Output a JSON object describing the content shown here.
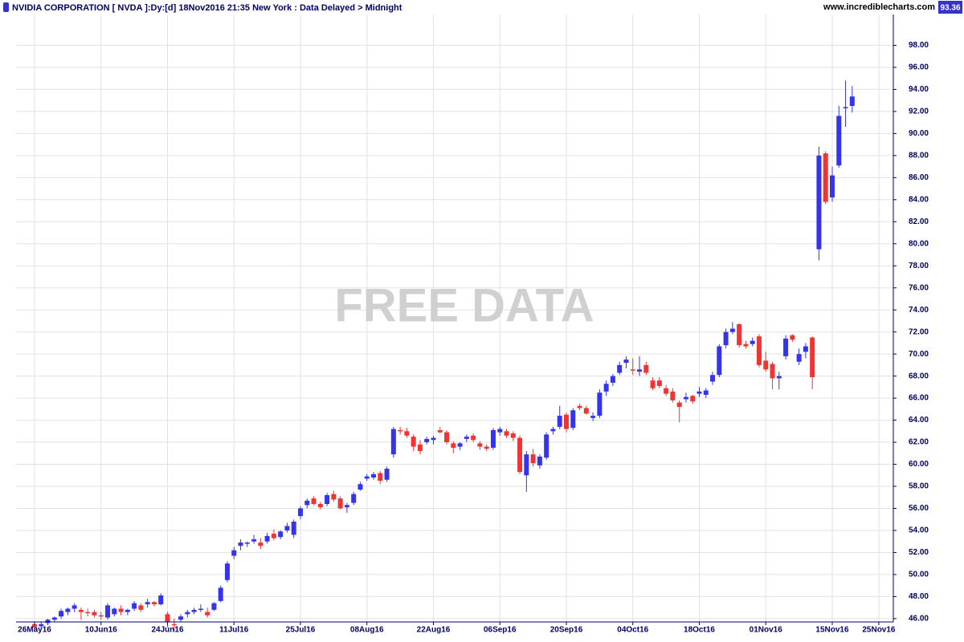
{
  "header": {
    "title": "NVIDIA CORPORATION [ NVDA ]:Dy:[d]  18Nov2016 21:35 New York : Data Delayed > Midnight",
    "website": "www.incrediblecharts.com"
  },
  "chart_data": {
    "type": "candlestick",
    "watermark": "FREE DATA",
    "last_price": 93.36,
    "up_color": "#3434f0",
    "down_color": "#f03434",
    "grid": true,
    "ylim": [
      45.7,
      100.8
    ],
    "yticks": [
      {
        "value": 46,
        "label": "46.00"
      },
      {
        "value": 48,
        "label": "48.00"
      },
      {
        "value": 50,
        "label": "50.00"
      },
      {
        "value": 52,
        "label": "52.00"
      },
      {
        "value": 54,
        "label": "54.00"
      },
      {
        "value": 56,
        "label": "56.00"
      },
      {
        "value": 58,
        "label": "58.00"
      },
      {
        "value": 60,
        "label": "60.00"
      },
      {
        "value": 62,
        "label": "62.00"
      },
      {
        "value": 64,
        "label": "64.00"
      },
      {
        "value": 66,
        "label": "66.00"
      },
      {
        "value": 68,
        "label": "68.00"
      },
      {
        "value": 70,
        "label": "70.00"
      },
      {
        "value": 72,
        "label": "72.00"
      },
      {
        "value": 74,
        "label": "74.00"
      },
      {
        "value": 76,
        "label": "76.00"
      },
      {
        "value": 78,
        "label": "78.00"
      },
      {
        "value": 80,
        "label": "80.00"
      },
      {
        "value": 82,
        "label": "82.00"
      },
      {
        "value": 84,
        "label": "84.00"
      },
      {
        "value": 86,
        "label": "86.00"
      },
      {
        "value": 88,
        "label": "88.00"
      },
      {
        "value": 90,
        "label": "90.00"
      },
      {
        "value": 92,
        "label": "92.00"
      },
      {
        "value": 94,
        "label": "94.00"
      },
      {
        "value": 96,
        "label": "96.00"
      },
      {
        "value": 98,
        "label": "98.00"
      }
    ],
    "categories": [
      "26May16",
      null,
      null,
      null,
      null,
      null,
      null,
      null,
      null,
      null,
      "10Jun16",
      null,
      null,
      null,
      null,
      null,
      null,
      null,
      null,
      null,
      "24Jun16",
      null,
      null,
      null,
      null,
      null,
      null,
      null,
      null,
      null,
      "11Jul16",
      null,
      null,
      null,
      null,
      null,
      null,
      null,
      null,
      null,
      "25Jul16",
      null,
      null,
      null,
      null,
      null,
      null,
      null,
      null,
      null,
      "08Aug16",
      null,
      null,
      null,
      null,
      null,
      null,
      null,
      null,
      null,
      "22Aug16",
      null,
      null,
      null,
      null,
      null,
      null,
      null,
      null,
      null,
      "06Sep16",
      null,
      null,
      null,
      null,
      null,
      null,
      null,
      null,
      null,
      "20Sep16",
      null,
      null,
      null,
      null,
      null,
      null,
      null,
      null,
      null,
      "04Oct16",
      null,
      null,
      null,
      null,
      null,
      null,
      null,
      null,
      null,
      "18Oct16",
      null,
      null,
      null,
      null,
      null,
      null,
      null,
      null,
      null,
      "01Nov16",
      null,
      null,
      null,
      null,
      null,
      null,
      null,
      null,
      null,
      "15Nov16",
      null,
      null,
      null,
      null,
      null,
      null,
      "25Nov16"
    ],
    "open": [
      45.5,
      45.3,
      45.6,
      45.9,
      46.2,
      46.6,
      46.9,
      46.8,
      46.6,
      46.6,
      46.3,
      46.1,
      46.4,
      46.9,
      46.6,
      46.9,
      47.2,
      47.3,
      47.5,
      47.3,
      46.4,
      45.5,
      45.9,
      46.4,
      46.6,
      46.8,
      46.6,
      46.8,
      47.6,
      49.5,
      51.7,
      52.6,
      52.8,
      53.0,
      52.9,
      53.0,
      53.7,
      53.4,
      54.0,
      53.6,
      55.3,
      56.3,
      56.9,
      56.4,
      56.4,
      57.3,
      56.9,
      56.1,
      56.5,
      57.7,
      58.7,
      58.8,
      59.2,
      58.6,
      60.9,
      63.1,
      63.0,
      62.5,
      61.8,
      62.0,
      62.2,
      63.1,
      62.9,
      61.9,
      61.6,
      62.3,
      62.6,
      61.9,
      61.6,
      61.5,
      62.9,
      63.0,
      62.8,
      62.4,
      59.0,
      60.9,
      59.9,
      60.6,
      63.0,
      63.4,
      64.5,
      63.3,
      65.3,
      65.1,
      64.2,
      64.4,
      66.6,
      67.4,
      68.3,
      69.2,
      68.6,
      68.4,
      69.0,
      67.6,
      67.6,
      66.9,
      66.6,
      65.6,
      65.9,
      66.2,
      66.4,
      66.3,
      67.5,
      68.1,
      70.8,
      72.0,
      72.7,
      70.9,
      70.9,
      71.6,
      69.4,
      69.1,
      67.8,
      69.8,
      71.7,
      69.3,
      70.2,
      71.5,
      79.5,
      88.2,
      84.2,
      87.1,
      92.3,
      92.5,
      null,
      null,
      null,
      null
    ],
    "high": [
      45.7,
      45.7,
      46.0,
      46.2,
      46.9,
      47.0,
      47.4,
      47.0,
      46.9,
      46.8,
      46.6,
      47.4,
      47.0,
      47.2,
      46.9,
      47.6,
      47.4,
      47.8,
      47.6,
      48.3,
      46.6,
      46.0,
      46.4,
      46.8,
      47.0,
      47.3,
      47.0,
      47.5,
      49.0,
      51.2,
      52.5,
      53.2,
      53.0,
      53.6,
      53.3,
      53.8,
      54.1,
      54.0,
      54.7,
      55.0,
      56.2,
      56.9,
      57.1,
      56.6,
      57.4,
      57.6,
      57.1,
      56.5,
      57.5,
      58.4,
      59.1,
      59.3,
      59.4,
      59.8,
      63.4,
      63.4,
      63.3,
      62.7,
      62.2,
      62.5,
      62.6,
      63.4,
      63.1,
      62.1,
      62.0,
      62.7,
      62.8,
      62.1,
      61.8,
      63.3,
      63.4,
      63.2,
      63.0,
      62.6,
      61.2,
      61.4,
      60.9,
      62.9,
      63.4,
      65.3,
      64.7,
      65.1,
      65.5,
      65.3,
      64.7,
      66.8,
      67.6,
      68.2,
      69.3,
      69.8,
      69.6,
      69.8,
      69.3,
      67.9,
      67.9,
      67.2,
      66.9,
      65.8,
      66.5,
      66.3,
      67.0,
      66.9,
      68.4,
      70.9,
      72.3,
      72.9,
      72.8,
      71.2,
      71.5,
      71.8,
      70.2,
      69.3,
      68.4,
      71.7,
      71.8,
      70.5,
      71.0,
      71.6,
      88.8,
      88.4,
      87.0,
      92.5,
      94.8,
      94.3,
      null,
      null,
      null,
      null
    ],
    "low": [
      44.9,
      45.1,
      45.4,
      45.7,
      46.0,
      46.3,
      46.6,
      45.9,
      46.2,
      46.1,
      45.9,
      45.9,
      46.2,
      46.3,
      46.3,
      46.7,
      46.6,
      47.0,
      47.1,
      47.2,
      45.2,
      44.8,
      45.7,
      46.1,
      46.4,
      46.6,
      46.1,
      46.7,
      47.5,
      49.3,
      51.4,
      52.2,
      52.5,
      52.8,
      52.3,
      52.8,
      53.1,
      53.2,
      53.8,
      53.3,
      55.0,
      56.0,
      56.3,
      55.9,
      56.2,
      56.6,
      55.9,
      55.6,
      56.3,
      57.6,
      58.5,
      58.6,
      58.2,
      58.4,
      60.6,
      62.7,
      62.4,
      61.2,
      60.9,
      61.8,
      61.8,
      62.8,
      61.8,
      61.0,
      61.3,
      62.0,
      62.0,
      61.3,
      61.2,
      61.3,
      62.6,
      62.4,
      62.1,
      59.1,
      57.5,
      59.8,
      59.6,
      60.4,
      62.7,
      63.2,
      62.9,
      63.1,
      64.9,
      64.5,
      63.9,
      64.2,
      66.2,
      67.1,
      68.1,
      68.7,
      68.1,
      68.0,
      68.1,
      66.7,
      66.9,
      66.2,
      65.6,
      63.8,
      65.6,
      65.5,
      66.1,
      66.0,
      67.2,
      67.9,
      70.5,
      71.8,
      70.6,
      70.5,
      70.7,
      68.8,
      68.4,
      66.8,
      66.8,
      69.5,
      71.1,
      69.0,
      69.6,
      66.8,
      78.5,
      83.6,
      83.8,
      86.9,
      90.6,
      91.9,
      null,
      null,
      null,
      null
    ],
    "close": [
      45.2,
      45.5,
      45.9,
      46.1,
      46.7,
      46.9,
      47.2,
      46.6,
      46.5,
      46.3,
      46.2,
      47.2,
      46.9,
      46.6,
      46.8,
      47.4,
      46.8,
      47.5,
      47.3,
      48.1,
      45.7,
      45.4,
      46.2,
      46.6,
      46.8,
      46.9,
      46.3,
      47.4,
      48.8,
      51.0,
      52.2,
      52.9,
      52.9,
      53.2,
      52.6,
      53.5,
      53.3,
      53.9,
      54.4,
      54.8,
      56.0,
      56.7,
      56.4,
      56.1,
      57.2,
      56.8,
      56.0,
      56.3,
      57.3,
      58.2,
      58.9,
      59.1,
      58.5,
      59.6,
      63.2,
      63.0,
      62.6,
      61.6,
      61.2,
      62.3,
      62.4,
      62.9,
      62.0,
      61.5,
      61.9,
      62.5,
      62.2,
      61.6,
      61.4,
      63.1,
      63.2,
      62.6,
      62.4,
      59.3,
      60.9,
      60.1,
      60.7,
      62.7,
      63.2,
      64.4,
      63.2,
      64.9,
      65.1,
      64.6,
      64.4,
      66.5,
      67.3,
      68.0,
      69.0,
      69.5,
      68.5,
      68.6,
      68.3,
      66.9,
      67.1,
      66.4,
      65.8,
      65.2,
      66.1,
      65.7,
      66.6,
      66.7,
      68.1,
      70.7,
      72.0,
      72.3,
      70.8,
      70.7,
      71.2,
      69.0,
      68.6,
      67.8,
      68.0,
      71.4,
      71.3,
      70.0,
      70.7,
      67.9,
      88.0,
      83.8,
      86.2,
      91.6,
      92.4,
      93.36,
      null,
      null,
      null,
      null
    ]
  }
}
